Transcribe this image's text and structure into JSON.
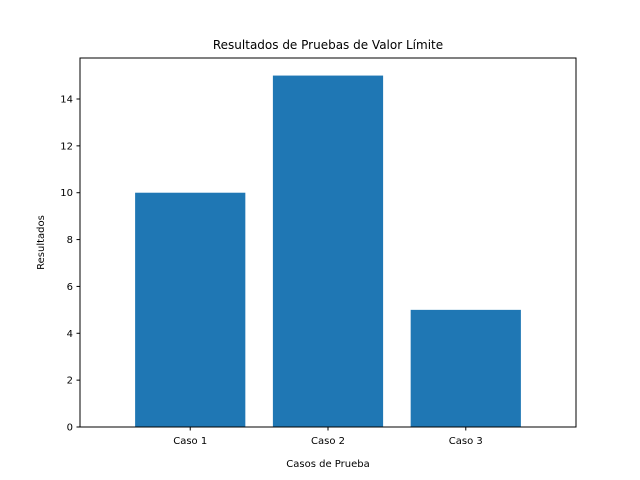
{
  "chart_data": {
    "type": "bar",
    "title": "Resultados de Pruebas de Valor Límite",
    "xlabel": "Casos de Prueba",
    "ylabel": "Resultados",
    "categories": [
      "Caso 1",
      "Caso 2",
      "Caso 3"
    ],
    "values": [
      10,
      15,
      5
    ],
    "ylim": [
      0,
      15.75
    ],
    "yticks": [
      0,
      2,
      4,
      6,
      8,
      10,
      12,
      14
    ],
    "grid": false,
    "bar_color": "#1f77b4"
  }
}
